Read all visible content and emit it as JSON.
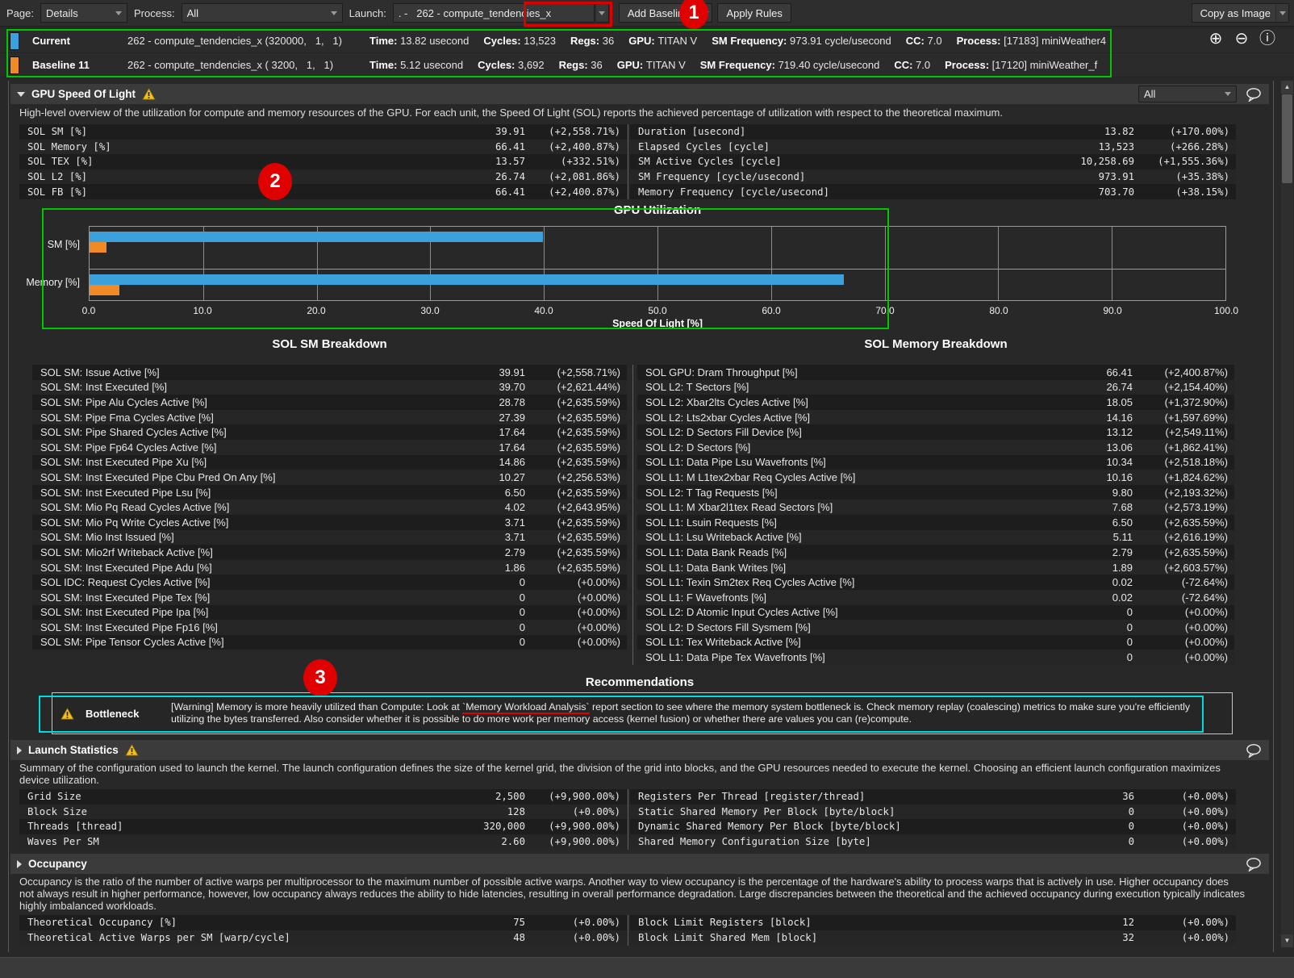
{
  "toolbar": {
    "page_label": "Page:",
    "page_value": "Details",
    "process_label": "Process:",
    "process_value": "All",
    "launch_label": "Launch:",
    "launch_value": ". -   262 - compute_tendencies_x",
    "add_baseline": "Add Baseline",
    "apply_rules": "Apply Rules",
    "copy_as_image": "Copy as Image"
  },
  "annotations": {
    "callout_1": "1",
    "callout_2": "2",
    "callout_3": "3"
  },
  "icons": {
    "zoom_in": "⊕",
    "zoom_out": "⊖",
    "info": "ⓘ"
  },
  "baselines": [
    {
      "name": "Current",
      "color": "#3ba1dc",
      "kernel": "262 - compute_tendencies_x (320000,   1,   1)",
      "stats": [
        {
          "label": "Time:",
          "value": "13.82 usecond"
        },
        {
          "label": "Cycles:",
          "value": "13,523"
        },
        {
          "label": "Regs:",
          "value": "36"
        },
        {
          "label": "GPU:",
          "value": "TITAN V"
        },
        {
          "label": "SM Frequency:",
          "value": "973.91 cycle/usecond"
        },
        {
          "label": "CC:",
          "value": "7.0"
        },
        {
          "label": "Process:",
          "value": "[17183] miniWeather4"
        }
      ]
    },
    {
      "name": "Baseline 11",
      "color": "#f18a25",
      "kernel": "262 - compute_tendencies_x ( 3200,   1,   1)",
      "stats": [
        {
          "label": "Time:",
          "value": "5.12 usecond"
        },
        {
          "label": "Cycles:",
          "value": "3,692"
        },
        {
          "label": "Regs:",
          "value": "36"
        },
        {
          "label": "GPU:",
          "value": "TITAN V"
        },
        {
          "label": "SM Frequency:",
          "value": "719.40 cycle/usecond"
        },
        {
          "label": "CC:",
          "value": "7.0"
        },
        {
          "label": "Process:",
          "value": "[17120] miniWeather_f"
        }
      ]
    }
  ],
  "gpu_sol": {
    "title": "GPU Speed Of Light",
    "filter_value": "All",
    "description": "High-level overview of the utilization for compute and memory resources of the GPU. For each unit, the Speed Of Light (SOL) reports the achieved percentage of utilization with respect to the theoretical maximum.",
    "table_left": [
      {
        "label": "SOL SM [%]",
        "value": "39.91",
        "delta": "(+2,558.71%)"
      },
      {
        "label": "SOL Memory [%]",
        "value": "66.41",
        "delta": "(+2,400.87%)"
      },
      {
        "label": "SOL TEX [%]",
        "value": "13.57",
        "delta": "(+332.51%)"
      },
      {
        "label": "SOL L2 [%]",
        "value": "26.74",
        "delta": "(+2,081.86%)"
      },
      {
        "label": "SOL FB [%]",
        "value": "66.41",
        "delta": "(+2,400.87%)"
      }
    ],
    "table_right": [
      {
        "label": "Duration [usecond]",
        "value": "13.82",
        "delta": "(+170.00%)"
      },
      {
        "label": "Elapsed Cycles [cycle]",
        "value": "13,523",
        "delta": "(+266.28%)"
      },
      {
        "label": "SM Active Cycles [cycle]",
        "value": "10,258.69",
        "delta": "(+1,555.36%)"
      },
      {
        "label": "SM Frequency [cycle/usecond]",
        "value": "973.91",
        "delta": "(+35.38%)"
      },
      {
        "label": "Memory Frequency [cycle/usecond]",
        "value": "703.70",
        "delta": "(+38.15%)"
      }
    ]
  },
  "chart_data": {
    "type": "bar",
    "orientation": "horizontal",
    "title": "GPU Utilization",
    "categories": [
      "SM [%]",
      "Memory [%]"
    ],
    "series": [
      {
        "name": "Current",
        "color": "#3ba1dc",
        "values": [
          39.91,
          66.41
        ]
      },
      {
        "name": "Baseline 11",
        "color": "#f18a25",
        "values": [
          1.5,
          2.66
        ]
      }
    ],
    "xlabel": "Speed Of Light [%]",
    "xlim": [
      0,
      100
    ],
    "xticks": [
      "0.0",
      "10.0",
      "20.0",
      "30.0",
      "40.0",
      "50.0",
      "60.0",
      "70.0",
      "80.0",
      "90.0",
      "100.0"
    ],
    "grid": true,
    "legend_position": "none"
  },
  "sm_breakdown": {
    "title": "SOL SM Breakdown",
    "rows": [
      {
        "label": "SOL SM: Issue Active [%]",
        "value": "39.91",
        "delta": "(+2,558.71%)"
      },
      {
        "label": "SOL SM: Inst Executed [%]",
        "value": "39.70",
        "delta": "(+2,621.44%)"
      },
      {
        "label": "SOL SM: Pipe Alu Cycles Active [%]",
        "value": "28.78",
        "delta": "(+2,635.59%)"
      },
      {
        "label": "SOL SM: Pipe Fma Cycles Active [%]",
        "value": "27.39",
        "delta": "(+2,635.59%)"
      },
      {
        "label": "SOL SM: Pipe Shared Cycles Active [%]",
        "value": "17.64",
        "delta": "(+2,635.59%)"
      },
      {
        "label": "SOL SM: Pipe Fp64 Cycles Active [%]",
        "value": "17.64",
        "delta": "(+2,635.59%)"
      },
      {
        "label": "SOL SM: Inst Executed Pipe Xu [%]",
        "value": "14.86",
        "delta": "(+2,635.59%)"
      },
      {
        "label": "SOL SM: Inst Executed Pipe Cbu Pred On Any [%]",
        "value": "10.27",
        "delta": "(+2,256.53%)"
      },
      {
        "label": "SOL SM: Inst Executed Pipe Lsu [%]",
        "value": "6.50",
        "delta": "(+2,635.59%)"
      },
      {
        "label": "SOL SM: Mio Pq Read Cycles Active [%]",
        "value": "4.02",
        "delta": "(+2,643.95%)"
      },
      {
        "label": "SOL SM: Mio Pq Write Cycles Active [%]",
        "value": "3.71",
        "delta": "(+2,635.59%)"
      },
      {
        "label": "SOL SM: Mio Inst Issued [%]",
        "value": "3.71",
        "delta": "(+2,635.59%)"
      },
      {
        "label": "SOL SM: Mio2rf Writeback Active [%]",
        "value": "2.79",
        "delta": "(+2,635.59%)"
      },
      {
        "label": "SOL SM: Inst Executed Pipe Adu [%]",
        "value": "1.86",
        "delta": "(+2,635.59%)"
      },
      {
        "label": "SOL IDC: Request Cycles Active [%]",
        "value": "0",
        "delta": "(+0.00%)"
      },
      {
        "label": "SOL SM: Inst Executed Pipe Tex [%]",
        "value": "0",
        "delta": "(+0.00%)"
      },
      {
        "label": "SOL SM: Inst Executed Pipe Ipa [%]",
        "value": "0",
        "delta": "(+0.00%)"
      },
      {
        "label": "SOL SM: Inst Executed Pipe Fp16 [%]",
        "value": "0",
        "delta": "(+0.00%)"
      },
      {
        "label": "SOL SM: Pipe Tensor Cycles Active [%]",
        "value": "0",
        "delta": "(+0.00%)"
      }
    ]
  },
  "memory_breakdown": {
    "title": "SOL Memory Breakdown",
    "rows": [
      {
        "label": "SOL GPU: Dram Throughput [%]",
        "value": "66.41",
        "delta": "(+2,400.87%)"
      },
      {
        "label": "SOL L2: T Sectors [%]",
        "value": "26.74",
        "delta": "(+2,154.40%)"
      },
      {
        "label": "SOL L2: Xbar2lts Cycles Active [%]",
        "value": "18.05",
        "delta": "(+1,372.90%)"
      },
      {
        "label": "SOL L2: Lts2xbar Cycles Active [%]",
        "value": "14.16",
        "delta": "(+1,597.69%)"
      },
      {
        "label": "SOL L2: D Sectors Fill Device [%]",
        "value": "13.12",
        "delta": "(+2,549.11%)"
      },
      {
        "label": "SOL L2: D Sectors [%]",
        "value": "13.06",
        "delta": "(+1,862.41%)"
      },
      {
        "label": "SOL L1: Data Pipe Lsu Wavefronts [%]",
        "value": "10.34",
        "delta": "(+2,518.18%)"
      },
      {
        "label": "SOL L1: M L1tex2xbar Req Cycles Active [%]",
        "value": "10.16",
        "delta": "(+1,824.62%)"
      },
      {
        "label": "SOL L2: T Tag Requests [%]",
        "value": "9.80",
        "delta": "(+2,193.32%)"
      },
      {
        "label": "SOL L1: M Xbar2l1tex Read Sectors [%]",
        "value": "7.68",
        "delta": "(+2,573.19%)"
      },
      {
        "label": "SOL L1: Lsuin Requests [%]",
        "value": "6.50",
        "delta": "(+2,635.59%)"
      },
      {
        "label": "SOL L1: Lsu Writeback Active [%]",
        "value": "5.11",
        "delta": "(+2,616.19%)"
      },
      {
        "label": "SOL L1: Data Bank Reads [%]",
        "value": "2.79",
        "delta": "(+2,635.59%)"
      },
      {
        "label": "SOL L1: Data Bank Writes [%]",
        "value": "1.89",
        "delta": "(+2,603.57%)"
      },
      {
        "label": "SOL L1: Texin Sm2tex Req Cycles Active [%]",
        "value": "0.02",
        "delta": "(-72.64%)"
      },
      {
        "label": "SOL L1: F Wavefronts [%]",
        "value": "0.02",
        "delta": "(-72.64%)"
      },
      {
        "label": "SOL L2: D Atomic Input Cycles Active [%]",
        "value": "0",
        "delta": "(+0.00%)"
      },
      {
        "label": "SOL L2: D Sectors Fill Sysmem [%]",
        "value": "0",
        "delta": "(+0.00%)"
      },
      {
        "label": "SOL L1: Tex Writeback Active [%]",
        "value": "0",
        "delta": "(+0.00%)"
      },
      {
        "label": "SOL L1: Data Pipe Tex Wavefronts [%]",
        "value": "0",
        "delta": "(+0.00%)"
      }
    ]
  },
  "recommendations": {
    "title": "Recommendations",
    "bottleneck_label": "Bottleneck",
    "text_before": "[Warning] Memory is more heavily utilized than Compute: Look at ",
    "text_highlight": "`Memory Workload Analysis`",
    "text_after": " report section to see where the memory system bottleneck is. Check memory replay (coalescing) metrics to make sure you're efficiently utilizing the bytes transferred. Also consider whether it is possible to do more work per memory access (kernel fusion) or whether there are values you can (re)compute."
  },
  "launch_stats": {
    "title": "Launch Statistics",
    "description": "Summary of the configuration used to launch the kernel. The launch configuration defines the size of the kernel grid, the division of the grid into blocks, and the GPU resources needed to execute the kernel. Choosing an efficient launch configuration maximizes device utilization.",
    "table_left": [
      {
        "label": "Grid Size",
        "value": "2,500",
        "delta": "(+9,900.00%)"
      },
      {
        "label": "Block Size",
        "value": "128",
        "delta": "(+0.00%)"
      },
      {
        "label": "Threads [thread]",
        "value": "320,000",
        "delta": "(+9,900.00%)"
      },
      {
        "label": "Waves Per SM",
        "value": "2.60",
        "delta": "(+9,900.00%)"
      }
    ],
    "table_right": [
      {
        "label": "Registers Per Thread [register/thread]",
        "value": "36",
        "delta": "(+0.00%)"
      },
      {
        "label": "Static Shared Memory Per Block [byte/block]",
        "value": "0",
        "delta": "(+0.00%)"
      },
      {
        "label": "Dynamic Shared Memory Per Block [byte/block]",
        "value": "0",
        "delta": "(+0.00%)"
      },
      {
        "label": "Shared Memory Configuration Size [byte]",
        "value": "0",
        "delta": "(+0.00%)"
      }
    ]
  },
  "occupancy": {
    "title": "Occupancy",
    "description": "Occupancy is the ratio of the number of active warps per multiprocessor to the maximum number of possible active warps. Another way to view occupancy is the percentage of the hardware's ability to process warps that is actively in use. Higher occupancy does not always result in higher performance, however, low occupancy always reduces the ability to hide latencies, resulting in overall performance degradation. Large discrepancies between the theoretical and the achieved occupancy during execution typically indicates highly imbalanced workloads.",
    "table_left": [
      {
        "label": "Theoretical Occupancy [%]",
        "value": "75",
        "delta": "(+0.00%)"
      },
      {
        "label": "Theoretical Active Warps per SM [warp/cycle]",
        "value": "48",
        "delta": "(+0.00%)"
      }
    ],
    "table_right": [
      {
        "label": "Block Limit Registers [block]",
        "value": "12",
        "delta": "(+0.00%)"
      },
      {
        "label": "Block Limit Shared Mem [block]",
        "value": "32",
        "delta": "(+0.00%)"
      }
    ]
  }
}
